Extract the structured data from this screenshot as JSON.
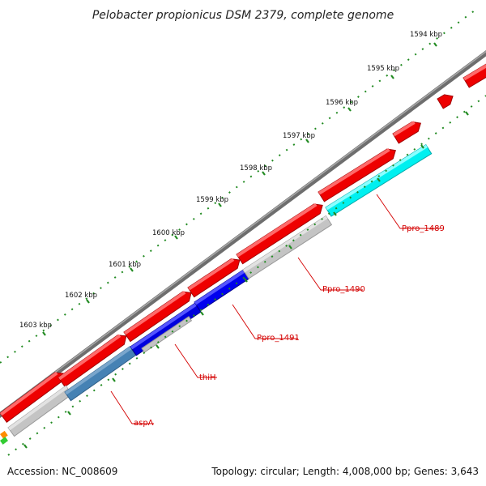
{
  "title": "Pelobacter propionicus DSM 2379, complete genome",
  "footer": {
    "accession": "Accession: NC_008609",
    "summary": "Topology: circular; Length: 4,008,000 bp; Genes: 3,643"
  },
  "kbp_labels": [
    "1594 kbp",
    "1595 kbp",
    "1596 kbp",
    "1597 kbp",
    "1598 kbp",
    "1599 kbp",
    "1600 kbp",
    "1601 kbp",
    "1602 kbp",
    "1603 kbp"
  ],
  "gene_labels": [
    "Ppro_1489",
    "Ppro_1490",
    "Ppro_1491",
    "thiH",
    "aspA"
  ],
  "colors": {
    "backbone": "#808080",
    "cds_forward": "#ff0000",
    "cds_reverse_grey": "#c8c8c8",
    "cds_cyan": "#00ffff",
    "cds_blue": "#0000ee",
    "cds_steelblue": "#4682b4",
    "ticks": "#228b22",
    "label": "#d40000"
  }
}
